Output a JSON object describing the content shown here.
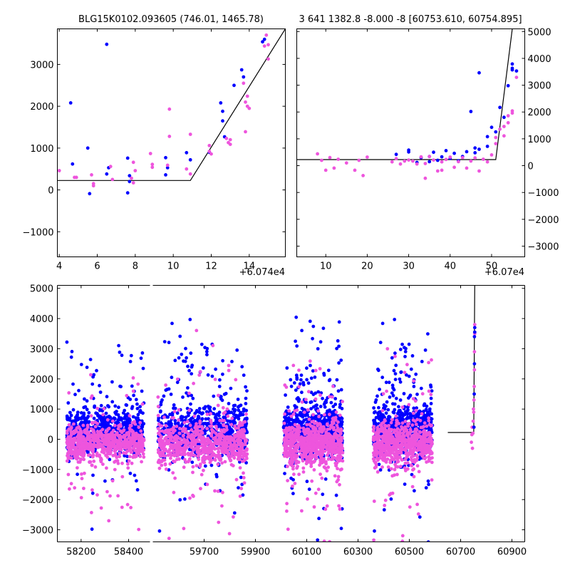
{
  "chart_data": [
    {
      "type": "scatter",
      "panel": "top-left",
      "title": "BLG15K0102.093605 (746.01, 1465.78)",
      "x_offset_label": "+6.074e4",
      "xlim": [
        3.9,
        15.9
      ],
      "ylim": [
        -1600,
        3850
      ],
      "xticks": [
        4,
        6,
        8,
        10,
        12,
        14
      ],
      "yticks": [
        -1000,
        0,
        1000,
        2000,
        3000
      ],
      "y_axis_side": "left",
      "colors": {
        "series_a": "#0000ff",
        "series_b": "#ee55dd",
        "model": "#000000"
      },
      "model_line": [
        [
          3.9,
          225
        ],
        [
          10.9,
          225
        ],
        [
          15.9,
          3850
        ]
      ],
      "series": [
        {
          "name": "blue",
          "color": "#0000ff",
          "points": [
            [
              4.6,
              2080
            ],
            [
              4.7,
              620
            ],
            [
              5.5,
              1000
            ],
            [
              5.6,
              -90
            ],
            [
              6.5,
              3480
            ],
            [
              6.6,
              530
            ],
            [
              6.5,
              380
            ],
            [
              7.6,
              760
            ],
            [
              7.6,
              -70
            ],
            [
              7.7,
              340
            ],
            [
              7.7,
              200
            ],
            [
              9.6,
              770
            ],
            [
              9.6,
              360
            ],
            [
              9.7,
              530
            ],
            [
              10.7,
              890
            ],
            [
              10.9,
              720
            ],
            [
              11.9,
              900
            ],
            [
              12.5,
              2080
            ],
            [
              12.6,
              1880
            ],
            [
              12.6,
              1650
            ],
            [
              12.7,
              1270
            ],
            [
              13.2,
              2500
            ],
            [
              13.6,
              2870
            ],
            [
              13.7,
              2700
            ],
            [
              14.7,
              3540
            ],
            [
              14.8,
              3600
            ],
            [
              14.9,
              3880
            ]
          ]
        },
        {
          "name": "magenta",
          "color": "#ee55dd",
          "points": [
            [
              4.0,
              460
            ],
            [
              4.8,
              300
            ],
            [
              4.9,
              300
            ],
            [
              5.8,
              100
            ],
            [
              5.7,
              360
            ],
            [
              5.8,
              150
            ],
            [
              6.7,
              560
            ],
            [
              6.8,
              250
            ],
            [
              7.8,
              280
            ],
            [
              7.9,
              170
            ],
            [
              7.9,
              660
            ],
            [
              8.0,
              460
            ],
            [
              8.8,
              870
            ],
            [
              8.9,
              540
            ],
            [
              8.9,
              610
            ],
            [
              9.7,
              590
            ],
            [
              9.8,
              1930
            ],
            [
              9.8,
              1280
            ],
            [
              10.7,
              500
            ],
            [
              10.9,
              380
            ],
            [
              10.9,
              1330
            ],
            [
              11.9,
              1060
            ],
            [
              11.9,
              920
            ],
            [
              12.0,
              860
            ],
            [
              12.8,
              1230
            ],
            [
              12.9,
              1130
            ],
            [
              13.0,
              1200
            ],
            [
              13.0,
              1090
            ],
            [
              13.7,
              2550
            ],
            [
              13.8,
              1390
            ],
            [
              13.8,
              2100
            ],
            [
              13.9,
              2000
            ],
            [
              13.9,
              2240
            ],
            [
              14.0,
              1950
            ],
            [
              14.8,
              3440
            ],
            [
              14.9,
              3700
            ],
            [
              15.0,
              3470
            ],
            [
              15.0,
              3130
            ]
          ]
        }
      ]
    },
    {
      "type": "scatter",
      "panel": "top-right",
      "title": "3 641 1382.8 -8.000 -8 [60753.610, 60754.895]",
      "x_offset_label": "+6.07e4",
      "xlim": [
        3,
        58
      ],
      "ylim": [
        -3400,
        5100
      ],
      "xticks": [
        10,
        20,
        30,
        40,
        50
      ],
      "yticks": [
        -3000,
        -2000,
        -1000,
        0,
        1000,
        2000,
        3000,
        4000,
        5000
      ],
      "y_axis_side": "right",
      "model_line": [
        [
          3,
          225
        ],
        [
          51,
          225
        ],
        [
          55,
          5100
        ]
      ],
      "series": [
        {
          "name": "blue",
          "color": "#0000ff",
          "points": [
            [
              27,
              420
            ],
            [
              30,
              510
            ],
            [
              30,
              580
            ],
            [
              32,
              120
            ],
            [
              33,
              300
            ],
            [
              35,
              150
            ],
            [
              35,
              340
            ],
            [
              36,
              500
            ],
            [
              37,
              200
            ],
            [
              38,
              330
            ],
            [
              39,
              560
            ],
            [
              40,
              270
            ],
            [
              41,
              460
            ],
            [
              42,
              180
            ],
            [
              43,
              340
            ],
            [
              44,
              520
            ],
            [
              45,
              2020
            ],
            [
              46,
              660
            ],
            [
              46,
              480
            ],
            [
              47,
              3460
            ],
            [
              47,
              610
            ],
            [
              49,
              1080
            ],
            [
              49,
              720
            ],
            [
              50,
              1430
            ],
            [
              51,
              1260
            ],
            [
              52,
              2170
            ],
            [
              53,
              1800
            ],
            [
              54,
              2980
            ],
            [
              55,
              3570
            ],
            [
              55,
              3790
            ],
            [
              55,
              3630
            ],
            [
              56,
              3530
            ]
          ]
        },
        {
          "name": "magenta",
          "color": "#ee55dd",
          "points": [
            [
              8,
              440
            ],
            [
              9,
              200
            ],
            [
              10,
              -170
            ],
            [
              11,
              300
            ],
            [
              12,
              -90
            ],
            [
              13,
              240
            ],
            [
              15,
              100
            ],
            [
              17,
              -170
            ],
            [
              18,
              200
            ],
            [
              19,
              -370
            ],
            [
              20,
              320
            ],
            [
              26,
              140
            ],
            [
              27,
              260
            ],
            [
              28,
              60
            ],
            [
              29,
              170
            ],
            [
              30,
              210
            ],
            [
              31,
              170
            ],
            [
              32,
              60
            ],
            [
              33,
              330
            ],
            [
              34,
              80
            ],
            [
              34,
              -470
            ],
            [
              35,
              340
            ],
            [
              36,
              210
            ],
            [
              37,
              -200
            ],
            [
              38,
              140
            ],
            [
              38,
              -170
            ],
            [
              39,
              230
            ],
            [
              40,
              320
            ],
            [
              41,
              -60
            ],
            [
              42,
              150
            ],
            [
              43,
              300
            ],
            [
              44,
              -90
            ],
            [
              45,
              170
            ],
            [
              46,
              290
            ],
            [
              47,
              -200
            ],
            [
              48,
              240
            ],
            [
              49,
              140
            ],
            [
              50,
              400
            ],
            [
              51,
              820
            ],
            [
              51,
              1050
            ],
            [
              52,
              1360
            ],
            [
              53,
              1110
            ],
            [
              53,
              1460
            ],
            [
              54,
              1600
            ],
            [
              54,
              1860
            ],
            [
              55,
              2040
            ],
            [
              55,
              1960
            ],
            [
              56,
              3290
            ]
          ]
        }
      ]
    },
    {
      "type": "scatter",
      "panel": "bottom",
      "x_segments": [
        {
          "range": [
            58100,
            58490
          ],
          "ticks": [
            58200,
            58400
          ]
        },
        {
          "range": [
            59500,
            60950
          ],
          "ticks": [
            59700,
            59900,
            60100,
            60300,
            60500,
            60700,
            60900
          ]
        }
      ],
      "ylim": [
        -3400,
        5100
      ],
      "yticks": [
        -3000,
        -2000,
        -1000,
        0,
        1000,
        2000,
        3000,
        4000,
        5000
      ],
      "y_axis_side": "left",
      "season_clusters": [
        {
          "segment": 0,
          "x_range": [
            58140,
            58465
          ],
          "core_sd": 340,
          "blue_outlier_frac": 0.12,
          "magenta_outlier_frac": 0.08
        },
        {
          "segment": 1,
          "x_range": [
            59520,
            59870
          ],
          "core_sd": 420,
          "blue_outlier_frac": 0.2,
          "magenta_outlier_frac": 0.15
        },
        {
          "segment": 1,
          "x_range": [
            60010,
            60240
          ],
          "core_sd": 430,
          "blue_outlier_frac": 0.2,
          "magenta_outlier_frac": 0.12
        },
        {
          "segment": 1,
          "x_range": [
            60360,
            60590
          ],
          "core_sd": 420,
          "blue_outlier_frac": 0.2,
          "magenta_outlier_frac": 0.12
        }
      ],
      "event_points": {
        "blue": [
          [
            60752,
            400
          ],
          [
            60753,
            1500
          ],
          [
            60754,
            2500
          ],
          [
            60754,
            3400
          ],
          [
            60755,
            3700
          ],
          [
            60755,
            3550
          ]
        ],
        "magenta": [
          [
            60742,
            -100
          ],
          [
            60744,
            150
          ],
          [
            60745,
            400
          ],
          [
            60746,
            -300
          ],
          [
            60748,
            200
          ],
          [
            60749,
            600
          ],
          [
            60750,
            1000
          ],
          [
            60751,
            900
          ],
          [
            60752,
            1300
          ],
          [
            60753,
            1750
          ],
          [
            60754,
            2300
          ],
          [
            60754,
            2900
          ],
          [
            60755,
            3500
          ],
          [
            60755,
            3800
          ]
        ]
      },
      "model_line": [
        [
          60650,
          225
        ],
        [
          60751,
          225
        ],
        [
          60755,
          5100
        ]
      ]
    }
  ]
}
